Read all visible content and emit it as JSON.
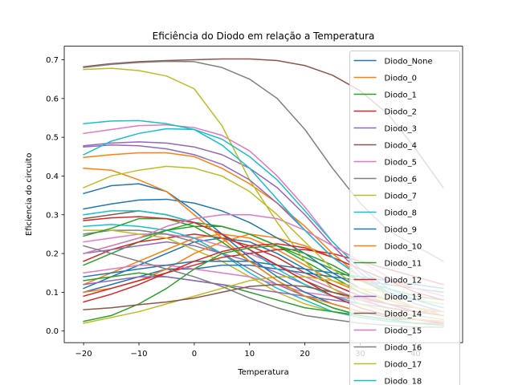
{
  "chart_data": {
    "type": "line",
    "title": "Eficiência do Diodo em relação a Temperatura",
    "xlabel": "Temperatura",
    "ylabel": "Eficiencia do circuito",
    "xlim": [
      -23.5,
      48.5
    ],
    "ylim": [
      -0.03,
      0.735
    ],
    "x_ticks": [
      -20,
      -10,
      0,
      10,
      20,
      30,
      40
    ],
    "y_ticks": [
      0.0,
      0.1,
      0.2,
      0.3,
      0.4,
      0.5,
      0.6,
      0.7
    ],
    "x_tick_labels": [
      "−20",
      "−10",
      "0",
      "10",
      "20",
      "30",
      "40"
    ],
    "y_tick_labels": [
      "0.0",
      "0.1",
      "0.2",
      "0.3",
      "0.4",
      "0.5",
      "0.6",
      "0.7"
    ],
    "grid": false,
    "legend_position": "upper-right",
    "x": [
      -20,
      -15,
      -10,
      -5,
      0,
      5,
      10,
      15,
      20,
      25,
      30,
      35,
      40,
      45
    ],
    "series": [
      {
        "name": "Diodo_None",
        "color": "#1f77b4",
        "values": [
          0.355,
          0.375,
          0.38,
          0.36,
          0.31,
          0.25,
          0.19,
          0.14,
          0.1,
          0.07,
          0.05,
          0.035,
          0.03,
          0.025
        ]
      },
      {
        "name": "Diodo_0",
        "color": "#ff7f0e",
        "values": [
          0.448,
          0.455,
          0.46,
          0.46,
          0.45,
          0.42,
          0.38,
          0.33,
          0.27,
          0.2,
          0.14,
          0.09,
          0.06,
          0.04
        ]
      },
      {
        "name": "Diodo_1",
        "color": "#2ca02c",
        "values": [
          0.245,
          0.265,
          0.29,
          0.29,
          0.27,
          0.23,
          0.18,
          0.13,
          0.09,
          0.06,
          0.04,
          0.03,
          0.02,
          0.015
        ]
      },
      {
        "name": "Diodo_2",
        "color": "#d62728",
        "values": [
          0.285,
          0.292,
          0.295,
          0.29,
          0.28,
          0.25,
          0.21,
          0.17,
          0.13,
          0.09,
          0.06,
          0.04,
          0.03,
          0.02
        ]
      },
      {
        "name": "Diodo_3",
        "color": "#9467bd",
        "values": [
          0.478,
          0.485,
          0.488,
          0.485,
          0.475,
          0.455,
          0.42,
          0.37,
          0.3,
          0.22,
          0.15,
          0.1,
          0.07,
          0.05
        ]
      },
      {
        "name": "Diodo_4",
        "color": "#8c564b",
        "values": [
          0.682,
          0.69,
          0.695,
          0.698,
          0.7,
          0.702,
          0.702,
          0.698,
          0.685,
          0.66,
          0.62,
          0.56,
          0.47,
          0.37
        ]
      },
      {
        "name": "Diodo_5",
        "color": "#e377c2",
        "values": [
          0.51,
          0.52,
          0.53,
          0.532,
          0.525,
          0.505,
          0.465,
          0.4,
          0.32,
          0.23,
          0.16,
          0.11,
          0.08,
          0.06
        ]
      },
      {
        "name": "Diodo_6",
        "color": "#7f7f7f",
        "values": [
          0.68,
          0.688,
          0.693,
          0.696,
          0.695,
          0.68,
          0.65,
          0.6,
          0.52,
          0.42,
          0.33,
          0.26,
          0.22,
          0.18
        ]
      },
      {
        "name": "Diodo_7",
        "color": "#bcbd22",
        "values": [
          0.675,
          0.678,
          0.672,
          0.658,
          0.625,
          0.53,
          0.39,
          0.28,
          0.18,
          0.11,
          0.07,
          0.05,
          0.04,
          0.03
        ]
      },
      {
        "name": "Diodo_8",
        "color": "#17becf",
        "values": [
          0.535,
          0.542,
          0.543,
          0.535,
          0.52,
          0.495,
          0.45,
          0.39,
          0.31,
          0.23,
          0.16,
          0.11,
          0.08,
          0.06
        ]
      },
      {
        "name": "Diodo_9",
        "color": "#1f77b4",
        "values": [
          0.315,
          0.328,
          0.338,
          0.34,
          0.33,
          0.31,
          0.28,
          0.24,
          0.2,
          0.15,
          0.11,
          0.08,
          0.06,
          0.05
        ]
      },
      {
        "name": "Diodo_10",
        "color": "#ff7f0e",
        "values": [
          0.42,
          0.415,
          0.39,
          0.36,
          0.3,
          0.24,
          0.18,
          0.13,
          0.09,
          0.07,
          0.05,
          0.04,
          0.03,
          0.025
        ]
      },
      {
        "name": "Diodo_11",
        "color": "#2ca02c",
        "values": [
          0.025,
          0.04,
          0.07,
          0.11,
          0.16,
          0.2,
          0.215,
          0.22,
          0.2,
          0.17,
          0.13,
          0.1,
          0.08,
          0.06
        ]
      },
      {
        "name": "Diodo_12",
        "color": "#d62728",
        "values": [
          0.075,
          0.095,
          0.12,
          0.15,
          0.18,
          0.205,
          0.22,
          0.225,
          0.215,
          0.19,
          0.16,
          0.13,
          0.1,
          0.08
        ]
      },
      {
        "name": "Diodo_13",
        "color": "#9467bd",
        "values": [
          0.475,
          0.48,
          0.478,
          0.47,
          0.455,
          0.43,
          0.39,
          0.33,
          0.26,
          0.19,
          0.14,
          0.1,
          0.08,
          0.06
        ]
      },
      {
        "name": "Diodo_14",
        "color": "#8c564b",
        "values": [
          0.055,
          0.06,
          0.068,
          0.075,
          0.085,
          0.1,
          0.115,
          0.12,
          0.115,
          0.1,
          0.085,
          0.07,
          0.06,
          0.05
        ]
      },
      {
        "name": "Diodo_15",
        "color": "#e377c2",
        "values": [
          0.2,
          0.22,
          0.24,
          0.27,
          0.29,
          0.3,
          0.3,
          0.29,
          0.26,
          0.22,
          0.18,
          0.14,
          0.11,
          0.09
        ]
      },
      {
        "name": "Diodo_16",
        "color": "#7f7f7f",
        "values": [
          0.22,
          0.2,
          0.18,
          0.16,
          0.14,
          0.115,
          0.085,
          0.06,
          0.04,
          0.03,
          0.02,
          0.015,
          0.01,
          0.01
        ]
      },
      {
        "name": "Diodo_17",
        "color": "#bcbd22",
        "values": [
          0.37,
          0.4,
          0.415,
          0.425,
          0.42,
          0.4,
          0.36,
          0.3,
          0.23,
          0.16,
          0.11,
          0.08,
          0.06,
          0.05
        ]
      },
      {
        "name": "Diodo_18",
        "color": "#17becf",
        "values": [
          0.455,
          0.49,
          0.51,
          0.522,
          0.52,
          0.48,
          0.42,
          0.34,
          0.26,
          0.19,
          0.14,
          0.1,
          0.08,
          0.06
        ]
      }
    ],
    "background_series": [
      {
        "color": "#1f77b4",
        "values": [
          0.11,
          0.14,
          0.17,
          0.2,
          0.23,
          0.24,
          0.23,
          0.2,
          0.16,
          0.12,
          0.09,
          0.07,
          0.05,
          0.04
        ]
      },
      {
        "color": "#ff7f0e",
        "values": [
          0.12,
          0.15,
          0.18,
          0.21,
          0.24,
          0.25,
          0.24,
          0.21,
          0.17,
          0.13,
          0.1,
          0.07,
          0.05,
          0.04
        ]
      },
      {
        "color": "#2ca02c",
        "values": [
          0.17,
          0.2,
          0.23,
          0.26,
          0.28,
          0.27,
          0.25,
          0.22,
          0.18,
          0.14,
          0.1,
          0.08,
          0.06,
          0.05
        ]
      },
      {
        "color": "#d62728",
        "values": [
          0.18,
          0.21,
          0.23,
          0.24,
          0.25,
          0.24,
          0.22,
          0.19,
          0.15,
          0.12,
          0.09,
          0.07,
          0.05,
          0.04
        ]
      },
      {
        "color": "#9467bd",
        "values": [
          0.2,
          0.21,
          0.22,
          0.23,
          0.22,
          0.2,
          0.18,
          0.15,
          0.12,
          0.09,
          0.07,
          0.05,
          0.04,
          0.03
        ]
      },
      {
        "color": "#e377c2",
        "values": [
          0.23,
          0.24,
          0.25,
          0.25,
          0.24,
          0.22,
          0.2,
          0.17,
          0.14,
          0.11,
          0.08,
          0.06,
          0.05,
          0.04
        ]
      },
      {
        "color": "#7f7f7f",
        "values": [
          0.25,
          0.26,
          0.26,
          0.25,
          0.23,
          0.2,
          0.16,
          0.12,
          0.09,
          0.06,
          0.04,
          0.03,
          0.02,
          0.02
        ]
      },
      {
        "color": "#bcbd22",
        "values": [
          0.26,
          0.26,
          0.25,
          0.24,
          0.21,
          0.18,
          0.14,
          0.1,
          0.07,
          0.05,
          0.035,
          0.025,
          0.02,
          0.015
        ]
      },
      {
        "color": "#17becf",
        "values": [
          0.27,
          0.275,
          0.27,
          0.26,
          0.24,
          0.2,
          0.15,
          0.11,
          0.08,
          0.05,
          0.035,
          0.025,
          0.02,
          0.015
        ]
      },
      {
        "color": "#1f77b4",
        "values": [
          0.1,
          0.12,
          0.14,
          0.16,
          0.16,
          0.17,
          0.17,
          0.16,
          0.15,
          0.14,
          0.13,
          0.12,
          0.11,
          0.1
        ]
      },
      {
        "color": "#ff7f0e",
        "values": [
          0.1,
          0.11,
          0.13,
          0.16,
          0.2,
          0.23,
          0.25,
          0.24,
          0.22,
          0.19,
          0.16,
          0.13,
          0.11,
          0.09
        ]
      },
      {
        "color": "#2ca02c",
        "values": [
          0.13,
          0.14,
          0.15,
          0.14,
          0.13,
          0.12,
          0.1,
          0.08,
          0.06,
          0.05,
          0.04,
          0.03,
          0.03,
          0.02
        ]
      },
      {
        "color": "#d62728",
        "values": [
          0.09,
          0.11,
          0.13,
          0.15,
          0.17,
          0.19,
          0.2,
          0.21,
          0.21,
          0.2,
          0.18,
          0.16,
          0.14,
          0.12
        ]
      },
      {
        "color": "#9467bd",
        "values": [
          0.12,
          0.13,
          0.14,
          0.14,
          0.13,
          0.12,
          0.11,
          0.1,
          0.09,
          0.08,
          0.07,
          0.06,
          0.05,
          0.05
        ]
      },
      {
        "color": "#8c564b",
        "values": [
          0.29,
          0.3,
          0.31,
          0.3,
          0.28,
          0.25,
          0.21,
          0.17,
          0.13,
          0.1,
          0.08,
          0.06,
          0.05,
          0.04
        ]
      },
      {
        "color": "#e377c2",
        "values": [
          0.15,
          0.16,
          0.17,
          0.17,
          0.16,
          0.15,
          0.14,
          0.12,
          0.1,
          0.09,
          0.08,
          0.07,
          0.06,
          0.05
        ]
      },
      {
        "color": "#bcbd22",
        "values": [
          0.02,
          0.035,
          0.05,
          0.07,
          0.09,
          0.11,
          0.13,
          0.14,
          0.14,
          0.13,
          0.11,
          0.1,
          0.08,
          0.07
        ]
      },
      {
        "color": "#17becf",
        "values": [
          0.3,
          0.31,
          0.31,
          0.3,
          0.28,
          0.25,
          0.21,
          0.16,
          0.12,
          0.09,
          0.07,
          0.05,
          0.04,
          0.03
        ]
      },
      {
        "color": "#1f77b4",
        "values": [
          0.14,
          0.15,
          0.16,
          0.17,
          0.18,
          0.18,
          0.18,
          0.17,
          0.16,
          0.15,
          0.14,
          0.13,
          0.12,
          0.11
        ]
      },
      {
        "color": "#2ca02c",
        "values": [
          0.2,
          0.22,
          0.24,
          0.26,
          0.27,
          0.27,
          0.25,
          0.22,
          0.19,
          0.16,
          0.13,
          0.11,
          0.09,
          0.08
        ]
      }
    ]
  }
}
